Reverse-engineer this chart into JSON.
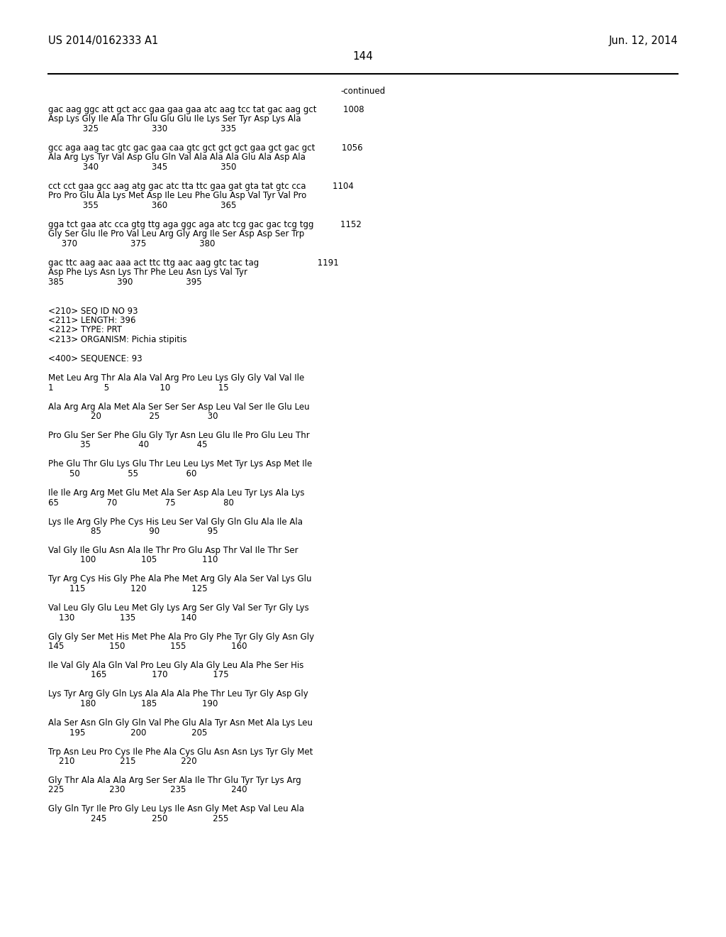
{
  "header_left": "US 2014/0162333 A1",
  "header_right": "Jun. 12, 2014",
  "page_number": "144",
  "continued_label": "-continued",
  "background_color": "#ffffff",
  "text_color": "#000000",
  "font_size": 8.5,
  "header_font_size": 10.5,
  "page_num_font_size": 11,
  "content_lines": [
    "gac aag ggc att gct acc gaa gaa gaa atc aag tcc tat gac aag gct          1008",
    "Asp Lys Gly Ile Ala Thr Glu Glu Glu Ile Lys Ser Tyr Asp Lys Ala",
    "             325                    330                    335",
    "",
    "gcc aga aag tac gtc gac gaa caa gtc gct gct gct gaa gct gac gct          1056",
    "Ala Arg Lys Tyr Val Asp Glu Gln Val Ala Ala Ala Glu Ala Asp Ala",
    "             340                    345                    350",
    "",
    "cct cct gaa gcc aag atg gac atc tta ttc gaa gat gta tat gtc cca          1104",
    "Pro Pro Glu Ala Lys Met Asp Ile Leu Phe Glu Asp Val Tyr Val Pro",
    "             355                    360                    365",
    "",
    "gga tct gaa atc cca gtg ttg aga ggc aga atc tcg gac gac tcg tgg          1152",
    "Gly Ser Glu Ile Pro Val Leu Arg Gly Arg Ile Ser Asp Asp Ser Trp",
    "     370                    375                    380",
    "",
    "gac ttc aag aac aaa act ttc ttg aac aag gtc tac tag                      1191",
    "Asp Phe Lys Asn Lys Thr Phe Leu Asn Lys Val Tyr",
    "385                    390                    395",
    "",
    "",
    "<210> SEQ ID NO 93",
    "<211> LENGTH: 396",
    "<212> TYPE: PRT",
    "<213> ORGANISM: Pichia stipitis",
    "",
    "<400> SEQUENCE: 93",
    "",
    "Met Leu Arg Thr Ala Ala Val Arg Pro Leu Lys Gly Gly Val Val Ile",
    "1                   5                   10                  15",
    "",
    "Ala Arg Arg Ala Met Ala Ser Ser Ser Asp Leu Val Ser Ile Glu Leu",
    "                20                  25                  30",
    "",
    "Pro Glu Ser Ser Phe Glu Gly Tyr Asn Leu Glu Ile Pro Glu Leu Thr",
    "            35                  40                  45",
    "",
    "Phe Glu Thr Glu Lys Glu Thr Leu Leu Lys Met Tyr Lys Asp Met Ile",
    "        50                  55                  60",
    "",
    "Ile Ile Arg Arg Met Glu Met Ala Ser Asp Ala Leu Tyr Lys Ala Lys",
    "65                  70                  75                  80",
    "",
    "Lys Ile Arg Gly Phe Cys His Leu Ser Val Gly Gln Glu Ala Ile Ala",
    "                85                  90                  95",
    "",
    "Val Gly Ile Glu Asn Ala Ile Thr Pro Glu Asp Thr Val Ile Thr Ser",
    "            100                 105                 110",
    "",
    "Tyr Arg Cys His Gly Phe Ala Phe Met Arg Gly Ala Ser Val Lys Glu",
    "        115                 120                 125",
    "",
    "Val Leu Gly Glu Leu Met Gly Lys Arg Ser Gly Val Ser Tyr Gly Lys",
    "    130                 135                 140",
    "",
    "Gly Gly Ser Met His Met Phe Ala Pro Gly Phe Tyr Gly Gly Asn Gly",
    "145                 150                 155                 160",
    "",
    "Ile Val Gly Ala Gln Val Pro Leu Gly Ala Gly Leu Ala Phe Ser His",
    "                165                 170                 175",
    "",
    "Lys Tyr Arg Gly Gln Lys Ala Ala Ala Phe Thr Leu Tyr Gly Asp Gly",
    "            180                 185                 190",
    "",
    "Ala Ser Asn Gln Gly Gln Val Phe Glu Ala Tyr Asn Met Ala Lys Leu",
    "        195                 200                 205",
    "",
    "Trp Asn Leu Pro Cys Ile Phe Ala Cys Glu Asn Asn Lys Tyr Gly Met",
    "    210                 215                 220",
    "",
    "Gly Thr Ala Ala Ala Arg Ser Ser Ala Ile Thr Glu Tyr Tyr Lys Arg",
    "225                 230                 235                 240",
    "",
    "Gly Gln Tyr Ile Pro Gly Leu Lys Ile Asn Gly Met Asp Val Leu Ala",
    "                245                 250                 255"
  ]
}
